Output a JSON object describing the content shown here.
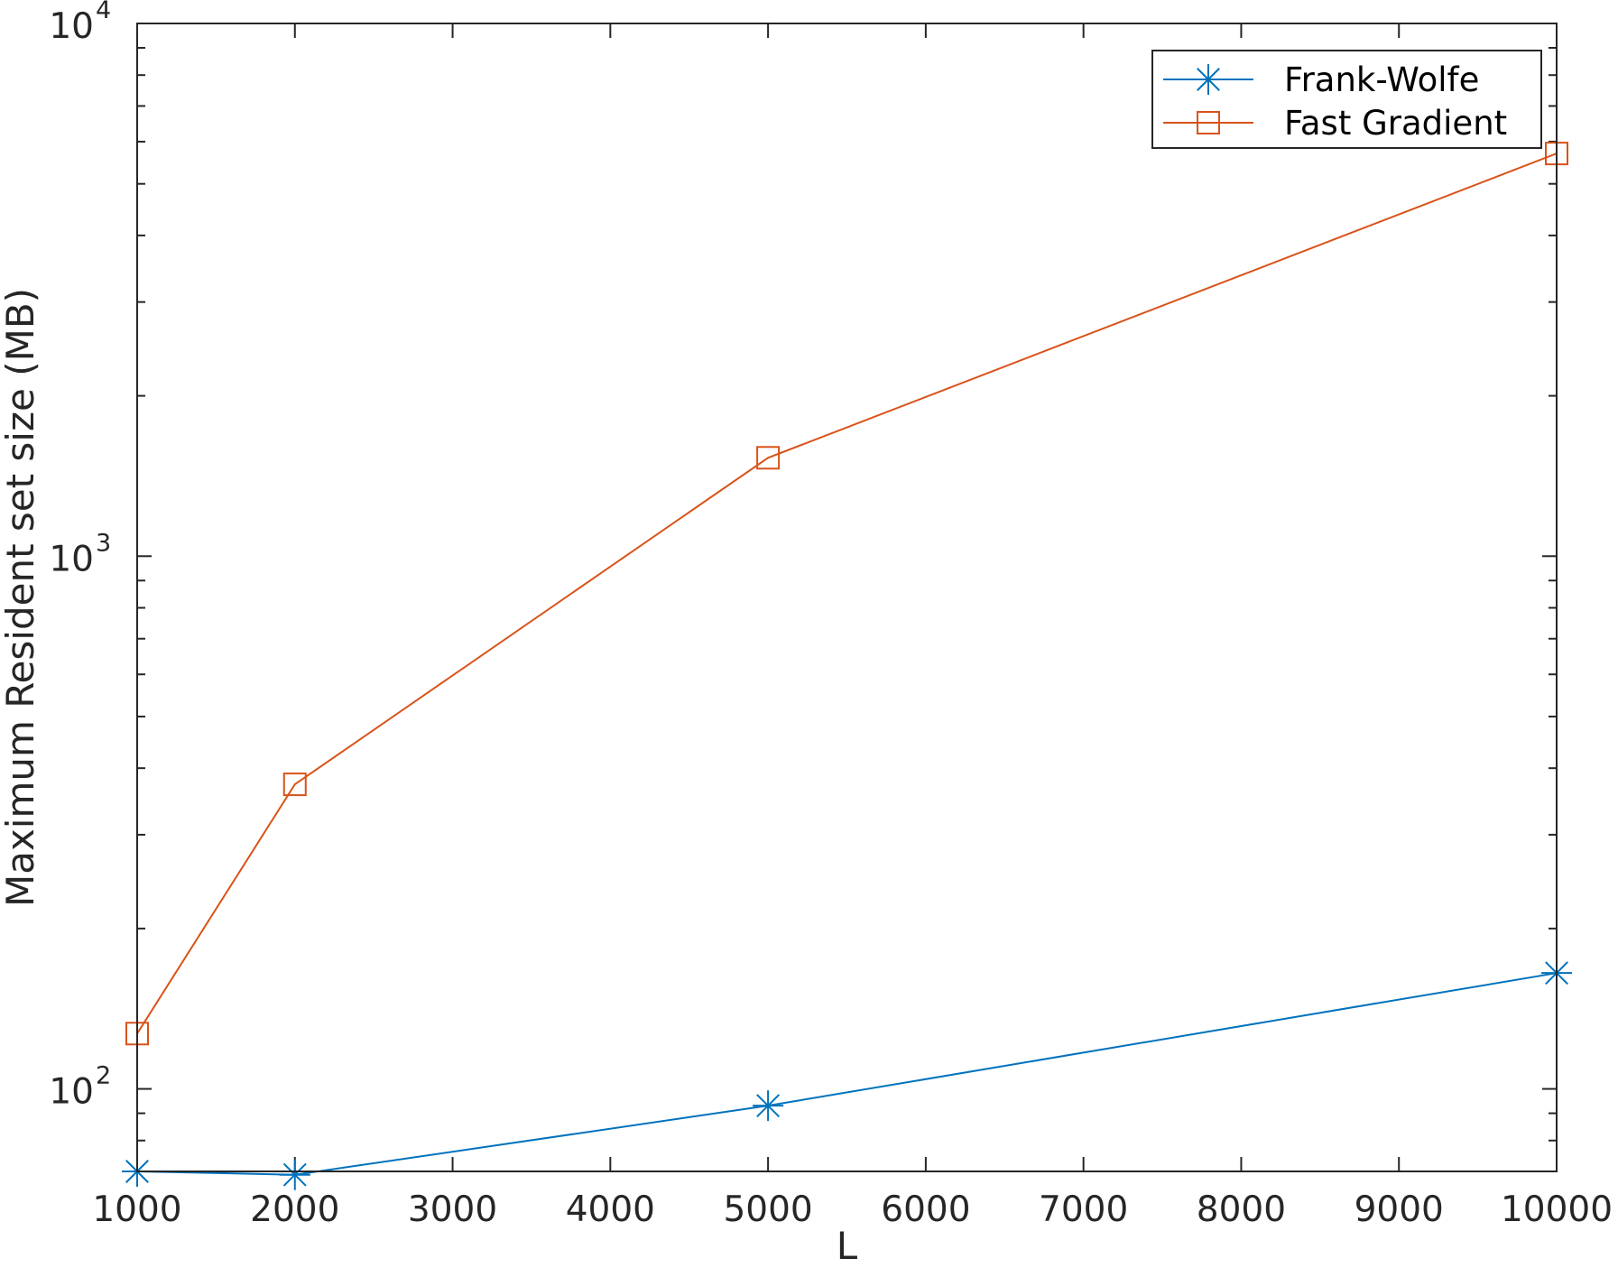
{
  "chart_data": {
    "type": "line",
    "xlabel": "L",
    "ylabel": "Maximum Resident set size (MB)",
    "x_scale": "linear",
    "y_scale": "log",
    "xlim": [
      1000,
      10000
    ],
    "ylim": [
      70,
      10000
    ],
    "x_ticks": [
      1000,
      2000,
      3000,
      4000,
      5000,
      6000,
      7000,
      8000,
      9000,
      10000
    ],
    "y_ticks": [
      {
        "base": "10",
        "exp": "2",
        "value": 100
      },
      {
        "base": "10",
        "exp": "3",
        "value": 1000
      },
      {
        "base": "10",
        "exp": "4",
        "value": 10000
      }
    ],
    "grid": false,
    "legend_position": "top-right",
    "series": [
      {
        "name": "Frank-Wolfe",
        "color": "#0072BD",
        "marker": "asterisk",
        "x": [
          1000,
          2000,
          5000,
          10000
        ],
        "y": [
          70,
          69,
          93,
          165
        ]
      },
      {
        "name": "Fast Gradient",
        "color": "#D95319",
        "marker": "square",
        "x": [
          1000,
          2000,
          5000,
          10000
        ],
        "y": [
          127,
          373,
          1530,
          5700
        ]
      }
    ]
  }
}
